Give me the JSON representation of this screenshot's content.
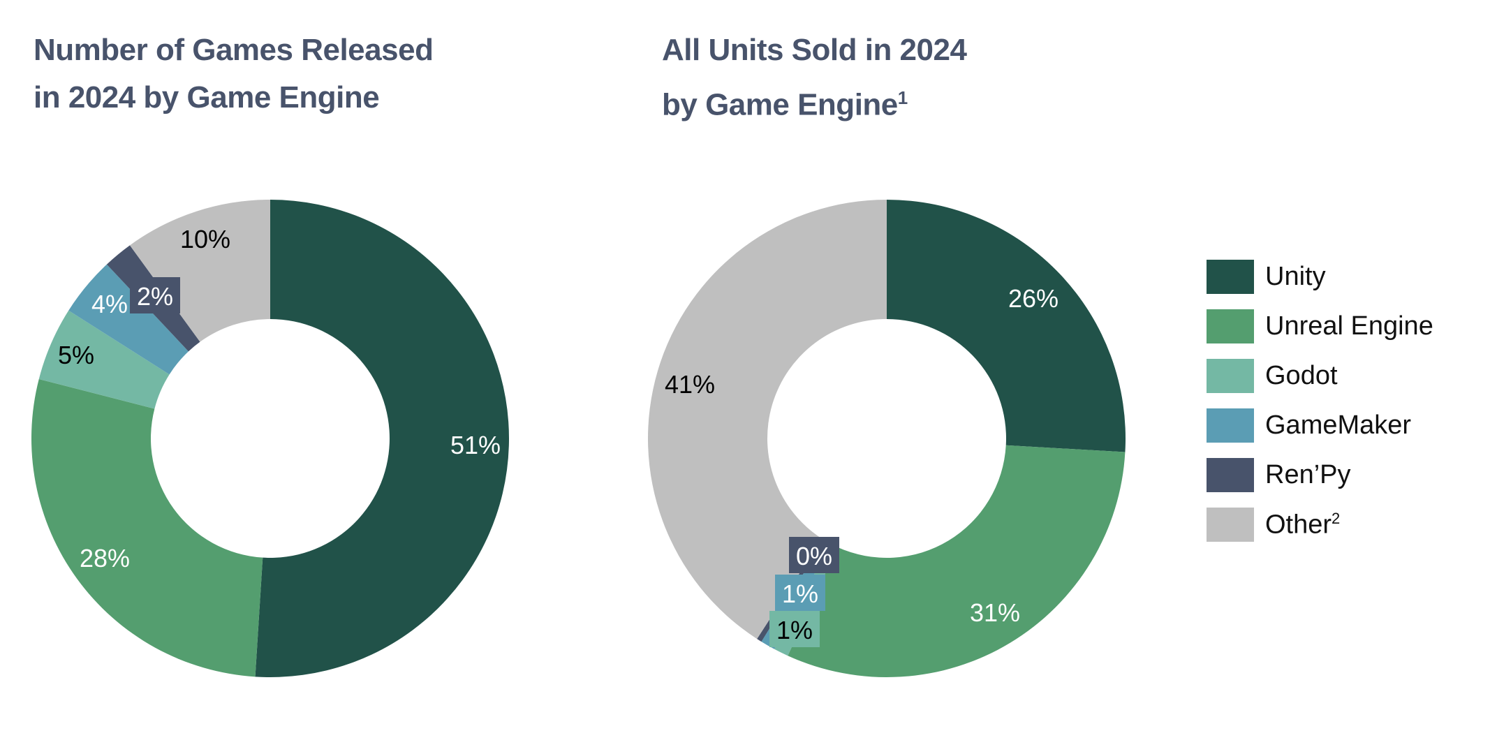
{
  "colors": {
    "Unity": "#215249",
    "Unreal Engine": "#549E6F",
    "Godot": "#74B8A4",
    "GameMaker": "#5B9DB4",
    "Ren'Py": "#48536B",
    "Other": "#BFBFBF",
    "title": "#48536B"
  },
  "legend": {
    "position": "right",
    "items": [
      {
        "label": "Unity",
        "sup": ""
      },
      {
        "label": "Unreal Engine",
        "sup": ""
      },
      {
        "label": "Godot",
        "sup": ""
      },
      {
        "label": "GameMaker",
        "sup": ""
      },
      {
        "label": "Ren’Py",
        "sup": ""
      },
      {
        "label": "Other",
        "sup": "2"
      }
    ]
  },
  "chart_data": [
    {
      "type": "pie",
      "variant": "donut",
      "title_line1": "Number of Games Released",
      "title_line2": "in 2024 by Game Engine",
      "title_sup": "",
      "categories": [
        "Unity",
        "Unreal Engine",
        "Godot",
        "GameMaker",
        "Ren'Py",
        "Other"
      ],
      "values": [
        51,
        28,
        5,
        4,
        2,
        10
      ],
      "labels": [
        "51%",
        "28%",
        "5%",
        "4%",
        "2%",
        "10%"
      ]
    },
    {
      "type": "pie",
      "variant": "donut",
      "title_line1": "All Units Sold in 2024",
      "title_line2": "by Game Engine",
      "title_sup": "1",
      "categories": [
        "Unity",
        "Unreal Engine",
        "Godot",
        "GameMaker",
        "Ren'Py",
        "Other"
      ],
      "values": [
        26,
        31,
        1,
        1,
        0,
        41
      ],
      "labels": [
        "26%",
        "31%",
        "1%",
        "1%",
        "0%",
        "41%"
      ]
    }
  ]
}
